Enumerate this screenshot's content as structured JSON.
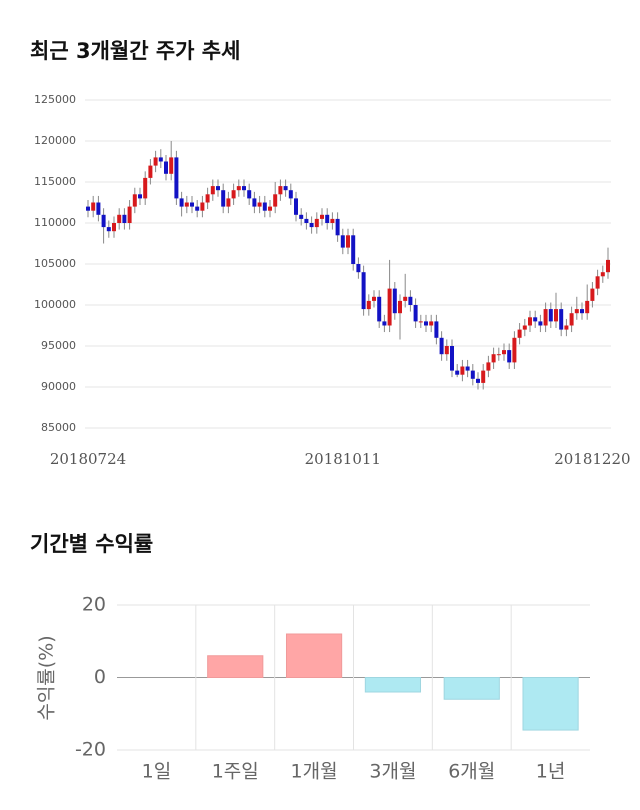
{
  "chart_data": [
    {
      "type": "candlestick",
      "title": "최근 3개월간 주가 추세",
      "categories": [
        "20180724",
        null,
        null,
        null,
        null,
        null,
        null,
        null,
        null,
        null,
        null,
        null,
        null,
        null,
        null,
        null,
        null,
        null,
        null,
        null,
        null,
        null,
        null,
        null,
        null,
        null,
        null,
        null,
        null,
        null,
        null,
        null,
        null,
        null,
        null,
        null,
        null,
        null,
        null,
        null,
        null,
        null,
        null,
        null,
        null,
        null,
        null,
        null,
        null,
        "20181011",
        null,
        null,
        null,
        null,
        null,
        null,
        null,
        null,
        null,
        null,
        null,
        null,
        null,
        null,
        null,
        null,
        null,
        null,
        null,
        null,
        null,
        null,
        null,
        null,
        null,
        null,
        null,
        null,
        null,
        null,
        null,
        null,
        null,
        null,
        null,
        null,
        null,
        null,
        null,
        null,
        null,
        null,
        null,
        null,
        null,
        null,
        null,
        "20181220",
        null,
        null,
        null
      ],
      "open": [
        112000,
        111500,
        112500,
        111000,
        109500,
        109000,
        110000,
        111000,
        110000,
        112000,
        113500,
        113000,
        115500,
        117000,
        118000,
        117500,
        116000,
        118000,
        113000,
        112000,
        112500,
        112000,
        111500,
        112500,
        113500,
        114500,
        114000,
        112000,
        113000,
        114000,
        114500,
        114000,
        113000,
        112000,
        112500,
        111500,
        112000,
        113500,
        114500,
        114000,
        113000,
        111000,
        110500,
        110000,
        109500,
        110500,
        111000,
        110000,
        110500,
        108500,
        107000,
        108500,
        105000,
        104000,
        99500,
        100500,
        101000,
        98000,
        97500,
        102000,
        99000,
        100500,
        101000,
        100000,
        98000,
        98000,
        97500,
        98000,
        96000,
        94000,
        95000,
        92000,
        91500,
        92500,
        92000,
        91000,
        90500,
        92000,
        93000,
        94000,
        94000,
        94500,
        93000,
        96000,
        97000,
        97500,
        98500,
        98000,
        97500,
        99500,
        98000,
        99500,
        97000,
        97500,
        99000,
        99500,
        99000,
        100500,
        102000,
        103500,
        104000
      ],
      "high": [
        112800,
        113300,
        113300,
        111800,
        110300,
        110800,
        111800,
        111800,
        112800,
        114300,
        114300,
        116300,
        117800,
        118800,
        119000,
        118300,
        120000,
        118800,
        113800,
        113300,
        113300,
        112800,
        113300,
        114300,
        115300,
        115300,
        114800,
        113800,
        114800,
        115300,
        115300,
        114800,
        113800,
        113300,
        113300,
        112800,
        115000,
        115300,
        115300,
        114800,
        113800,
        111800,
        111300,
        110800,
        111300,
        111800,
        111800,
        111300,
        111300,
        109300,
        109300,
        109300,
        105800,
        104800,
        101300,
        101800,
        101800,
        98800,
        105500,
        102800,
        101300,
        103800,
        101800,
        100800,
        98800,
        98800,
        98800,
        98800,
        96800,
        95800,
        95800,
        92800,
        93300,
        93300,
        92800,
        91800,
        92800,
        93800,
        94800,
        94800,
        95300,
        95300,
        96800,
        97800,
        98300,
        99300,
        99300,
        98800,
        100300,
        100300,
        101500,
        100300,
        98300,
        99800,
        101000,
        100300,
        102500,
        102800,
        104300,
        104800,
        107000
      ],
      "low": [
        110700,
        110700,
        110200,
        107500,
        108200,
        108200,
        109200,
        109200,
        109200,
        111200,
        112200,
        112200,
        114700,
        116200,
        116700,
        115200,
        115200,
        112200,
        110800,
        111200,
        111200,
        110700,
        110700,
        111700,
        112700,
        113200,
        111200,
        111200,
        112200,
        113200,
        113200,
        112200,
        111200,
        111200,
        110700,
        110700,
        111200,
        112700,
        113200,
        112200,
        110200,
        109700,
        109200,
        108700,
        108700,
        109700,
        109200,
        109200,
        107700,
        106200,
        106200,
        104200,
        103200,
        98700,
        98700,
        99700,
        97200,
        96700,
        96700,
        98200,
        95800,
        99700,
        99200,
        97200,
        97200,
        96700,
        96700,
        95200,
        93200,
        93200,
        91200,
        91200,
        90700,
        91200,
        90200,
        89700,
        89700,
        91200,
        92200,
        93200,
        93200,
        92200,
        92200,
        95200,
        96200,
        96700,
        97200,
        96700,
        96700,
        97200,
        97200,
        96200,
        96200,
        96700,
        98200,
        98200,
        98200,
        99700,
        101200,
        102700,
        103200
      ],
      "close": [
        111500,
        112500,
        111000,
        109500,
        109000,
        110000,
        111000,
        110000,
        112000,
        113500,
        113000,
        115500,
        117000,
        118000,
        117500,
        116000,
        118000,
        113000,
        112000,
        112500,
        112000,
        111500,
        112500,
        113500,
        114500,
        114000,
        112000,
        113000,
        114000,
        114500,
        114000,
        113000,
        112000,
        112500,
        111500,
        112000,
        113500,
        114500,
        114000,
        113000,
        111000,
        110500,
        110000,
        109500,
        110500,
        111000,
        110000,
        110500,
        108500,
        107000,
        108500,
        105000,
        104000,
        99500,
        100500,
        101000,
        98000,
        97500,
        102000,
        99000,
        100500,
        101000,
        100000,
        98000,
        98000,
        97500,
        98000,
        96000,
        94000,
        95000,
        92000,
        91500,
        92500,
        92000,
        91000,
        90500,
        92000,
        93000,
        94000,
        94000,
        94500,
        93000,
        96000,
        97000,
        97500,
        98500,
        98000,
        97500,
        99500,
        98000,
        99500,
        97000,
        97500,
        99000,
        99500,
        99000,
        100500,
        102000,
        103500,
        104000,
        105500
      ],
      "up_color": "#d7191c",
      "down_color": "#1212c4",
      "ylim": [
        85000,
        125000
      ],
      "yticks": [
        85000,
        90000,
        95000,
        100000,
        105000,
        110000,
        115000,
        120000,
        125000
      ],
      "grid": true
    },
    {
      "type": "bar",
      "title": "기간별 수익률",
      "ylabel": "수익률(%)",
      "categories": [
        "1일",
        "1주일",
        "1개월",
        "3개월",
        "6개월",
        "1년"
      ],
      "values": [
        0,
        6,
        12,
        -4,
        -6,
        -14.5
      ],
      "positive_color": "#ffa6a6",
      "negative_color": "#aee9f2",
      "ylim": [
        -20,
        20
      ],
      "yticks": [
        -20,
        0,
        20
      ],
      "grid": true
    }
  ]
}
